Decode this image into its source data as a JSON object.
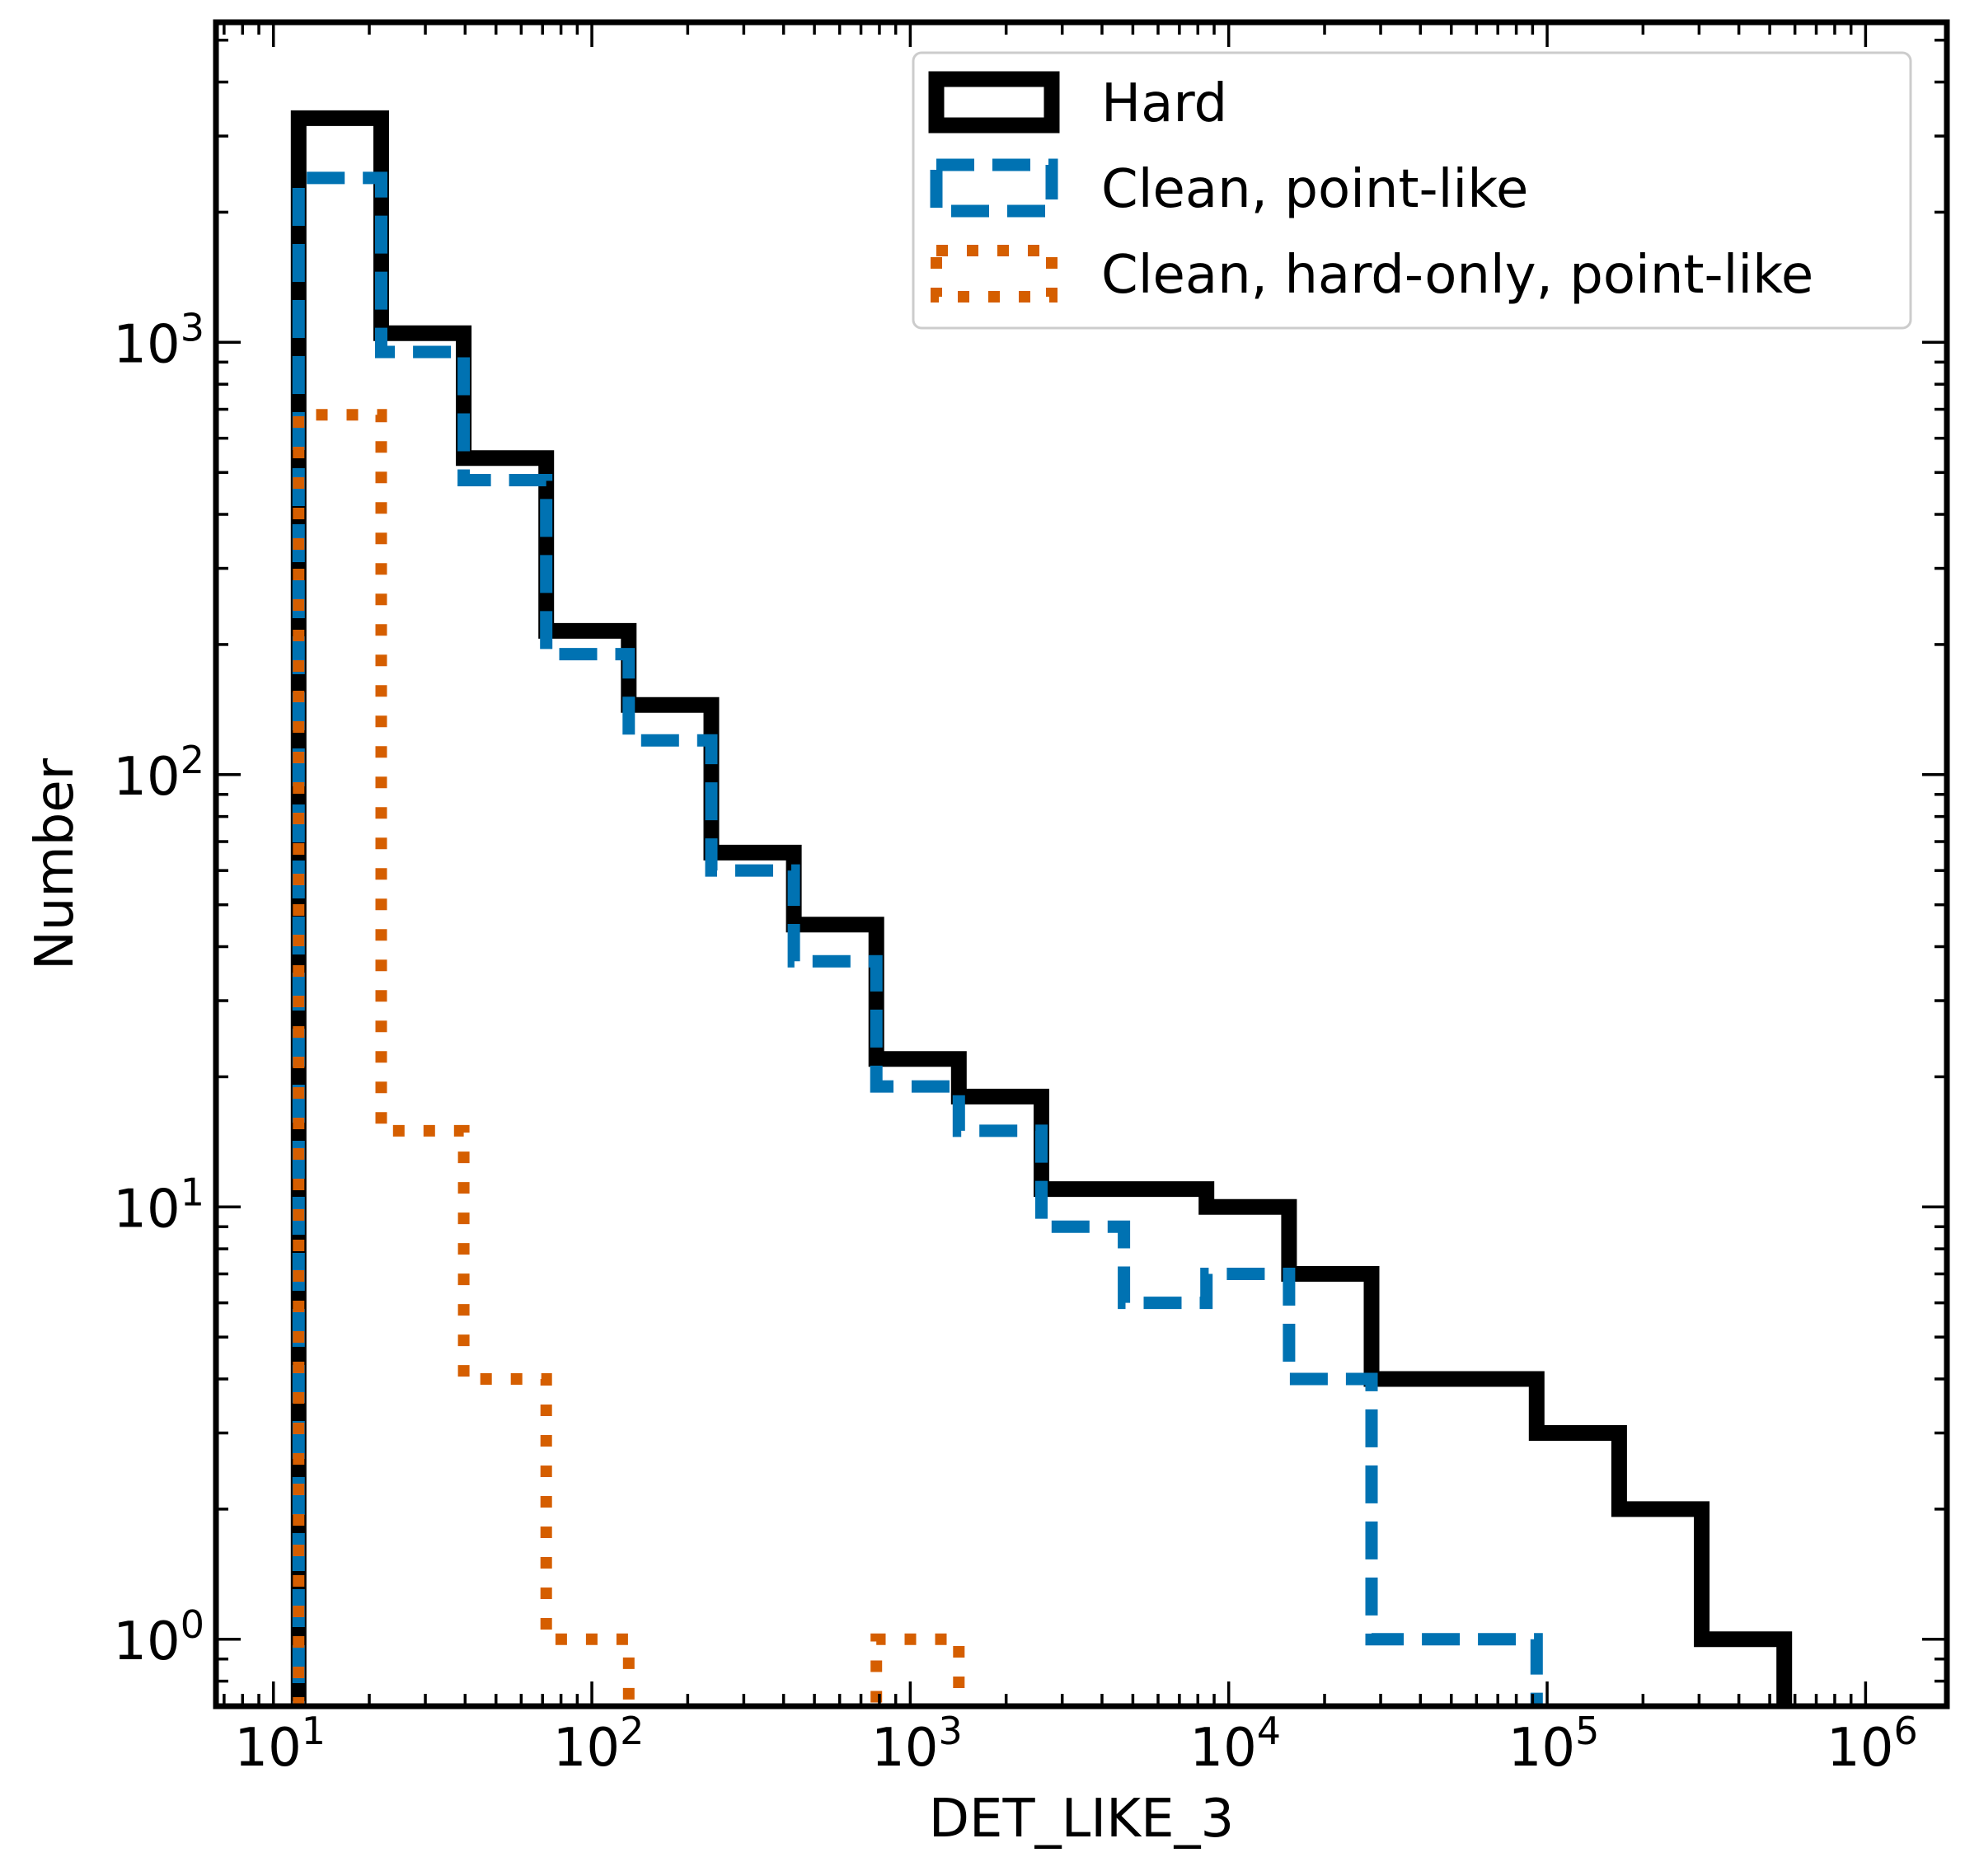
{
  "chart_data": {
    "type": "histogram",
    "title": "",
    "xlabel": "DET_LIKE_3",
    "ylabel": "Number",
    "xscale": "log",
    "yscale": "log",
    "xlim": [
      6.6,
      1800000
    ],
    "ylim": [
      0.7,
      5500
    ],
    "grid": false,
    "legend_position": "top-right",
    "bin_edges": [
      12,
      21.8,
      39.6,
      71.9,
      130.6,
      237.2,
      430.8,
      782.5,
      1421,
      2581,
      4688,
      8515,
      15466,
      28091,
      51023,
      92674,
      168326,
      305740,
      555330
    ],
    "x_ticks": [
      {
        "value": 10,
        "base": "10",
        "exp": "1"
      },
      {
        "value": 100,
        "base": "10",
        "exp": "2"
      },
      {
        "value": 1000,
        "base": "10",
        "exp": "3"
      },
      {
        "value": 10000,
        "base": "10",
        "exp": "4"
      },
      {
        "value": 100000,
        "base": "10",
        "exp": "5"
      },
      {
        "value": 1000000,
        "base": "10",
        "exp": "6"
      }
    ],
    "y_ticks": [
      {
        "value": 1,
        "base": "10",
        "exp": "0"
      },
      {
        "value": 10,
        "base": "10",
        "exp": "1"
      },
      {
        "value": 100,
        "base": "10",
        "exp": "2"
      },
      {
        "value": 1000,
        "base": "10",
        "exp": "3"
      }
    ],
    "series": [
      {
        "name": "Hard",
        "style": "solid",
        "color": "#000000",
        "values": [
          3300,
          1050,
          540,
          215,
          145,
          66,
          45,
          22,
          18,
          11,
          11,
          10,
          7,
          4,
          4,
          3,
          2,
          1
        ]
      },
      {
        "name": "Clean, point-like",
        "style": "dashed",
        "color": "#0072b2",
        "values": [
          2400,
          950,
          480,
          190,
          120,
          60,
          37,
          19,
          15,
          9,
          6,
          7,
          4,
          1,
          1,
          0,
          0,
          0
        ]
      },
      {
        "name": "Clean, hard-only, point-like",
        "style": "dotted",
        "color": "#d55e00",
        "values": [
          680,
          15,
          4,
          1,
          0,
          0,
          0,
          1,
          0,
          0,
          0,
          0,
          0,
          0,
          0,
          0,
          0,
          0
        ]
      }
    ]
  }
}
